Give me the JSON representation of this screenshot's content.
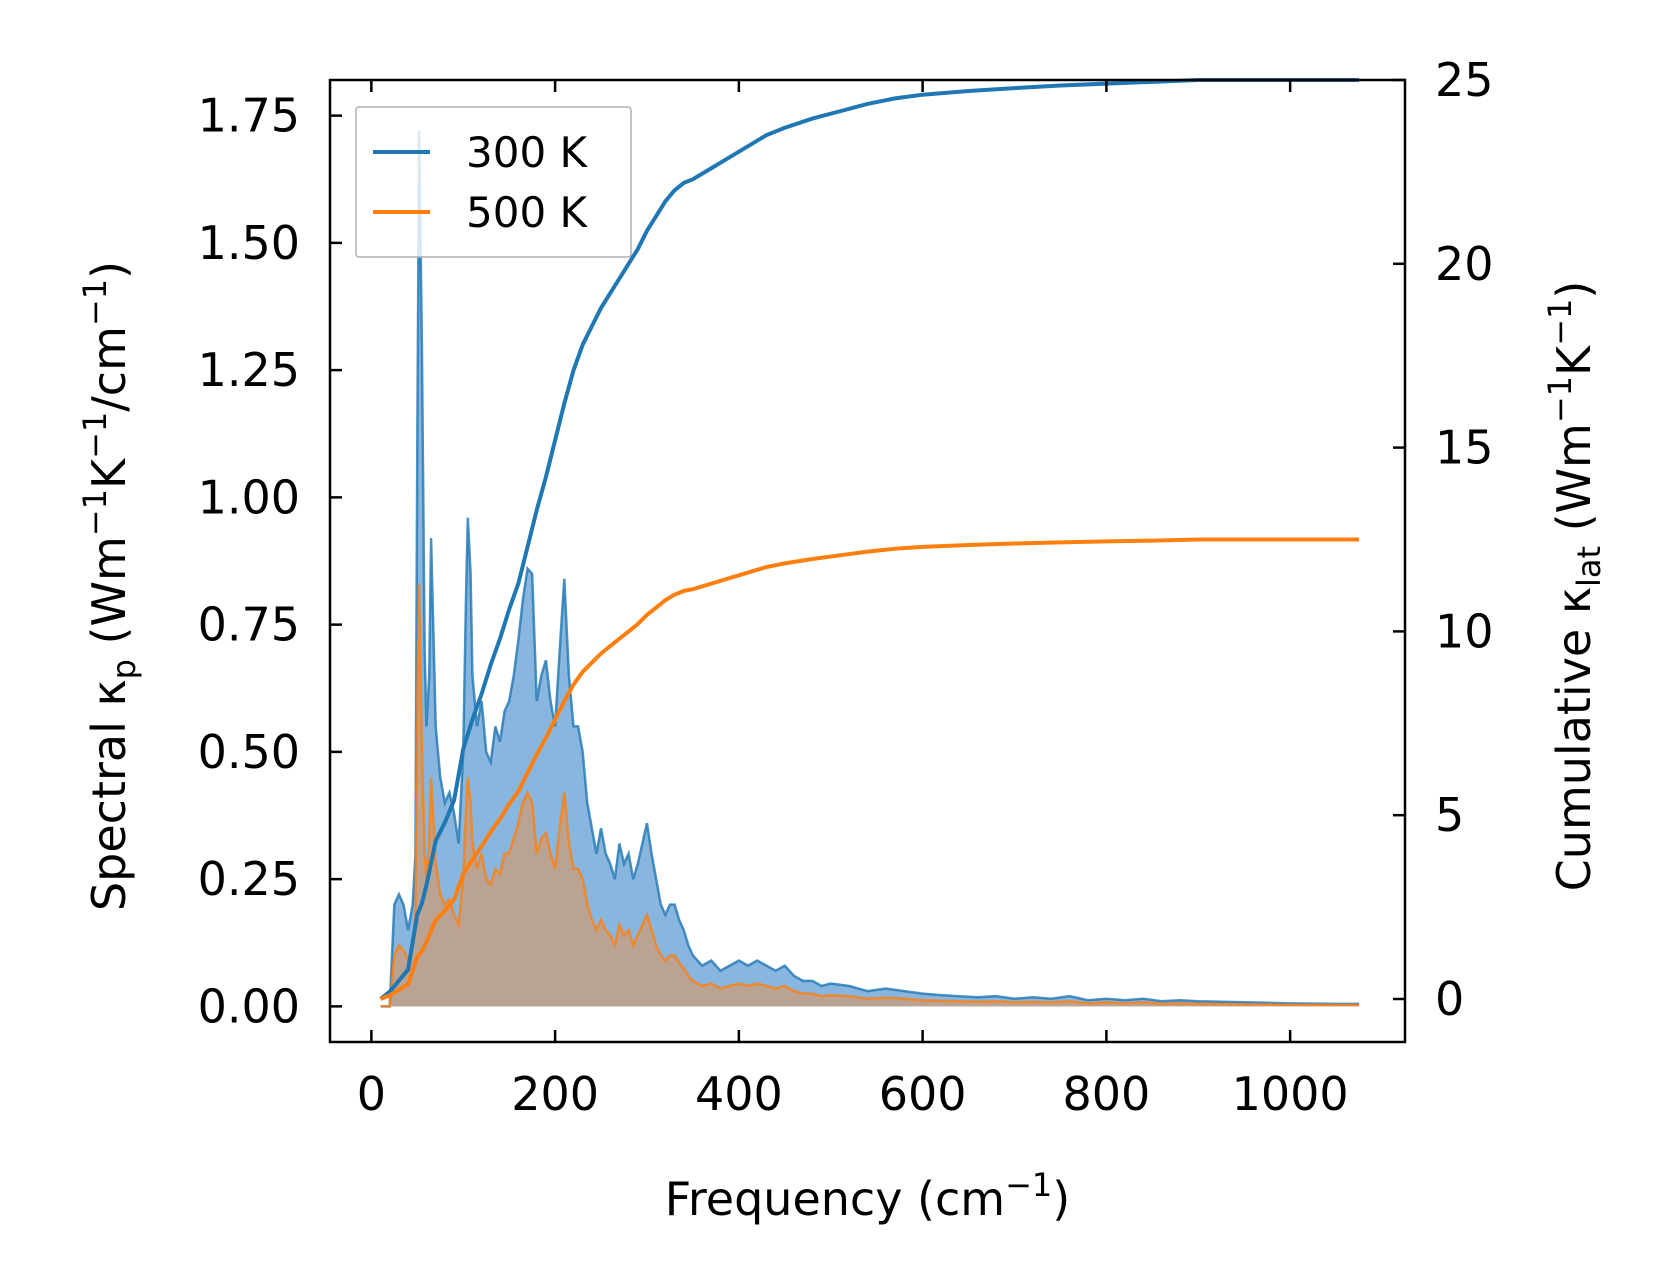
{
  "colors": {
    "series_300": "#1f77b4",
    "series_500": "#ff7f0e",
    "fill_300": "#4a8fcc",
    "fill_500": "#d49a6a"
  },
  "chart_data": {
    "type": "line",
    "title": "",
    "xlabel": "Frequency (cm",
    "xlabel_sup": "−1",
    "xlabel_end": ")",
    "ylabel_left_parts": [
      {
        "t": "Spectral κ",
        "s": "n"
      },
      {
        "t": "p",
        "s": "sub"
      },
      {
        "t": " (Wm",
        "s": "n"
      },
      {
        "t": "−1",
        "s": "sup"
      },
      {
        "t": "K",
        "s": "n"
      },
      {
        "t": "−1",
        "s": "sup"
      },
      {
        "t": "/cm",
        "s": "n"
      },
      {
        "t": "−1",
        "s": "sup"
      },
      {
        "t": ")",
        "s": "n"
      }
    ],
    "ylabel_right_parts": [
      {
        "t": "Cumulative κ",
        "s": "n"
      },
      {
        "t": "lat",
        "s": "sub"
      },
      {
        "t": " (Wm",
        "s": "n"
      },
      {
        "t": "−1",
        "s": "sup"
      },
      {
        "t": "K",
        "s": "n"
      },
      {
        "t": "−1",
        "s": "sup"
      },
      {
        "t": ")",
        "s": "n"
      }
    ],
    "xlim": [
      -45,
      1125
    ],
    "ylim_left": [
      -0.07,
      1.82
    ],
    "ylim_right": [
      -1.17,
      25.0
    ],
    "xticks": [
      0,
      200,
      400,
      600,
      800,
      1000
    ],
    "xtick_labels": [
      "0",
      "200",
      "400",
      "600",
      "800",
      "1000"
    ],
    "yticks_left": [
      0.0,
      0.25,
      0.5,
      0.75,
      1.0,
      1.25,
      1.5,
      1.75
    ],
    "ytick_labels_left": [
      "0.00",
      "0.25",
      "0.50",
      "0.75",
      "1.00",
      "1.25",
      "1.50",
      "1.75"
    ],
    "yticks_right": [
      0,
      5,
      10,
      15,
      20,
      25
    ],
    "ytick_labels_right": [
      "0",
      "5",
      "10",
      "15",
      "20",
      "25"
    ],
    "legend": {
      "position": "upper-left",
      "entries": [
        "300 K",
        "500 K"
      ]
    },
    "spectral_300": {
      "x": [
        10,
        20,
        25,
        30,
        35,
        40,
        45,
        48,
        50,
        52,
        55,
        58,
        60,
        63,
        65,
        68,
        70,
        75,
        80,
        85,
        90,
        95,
        100,
        103,
        105,
        108,
        110,
        115,
        120,
        125,
        130,
        135,
        140,
        145,
        150,
        155,
        160,
        165,
        170,
        175,
        180,
        185,
        190,
        195,
        200,
        205,
        210,
        215,
        220,
        225,
        230,
        235,
        240,
        245,
        250,
        255,
        260,
        265,
        270,
        275,
        280,
        285,
        290,
        295,
        300,
        305,
        310,
        315,
        320,
        325,
        330,
        335,
        340,
        345,
        350,
        360,
        370,
        380,
        390,
        400,
        410,
        420,
        430,
        440,
        450,
        460,
        470,
        480,
        490,
        500,
        520,
        540,
        560,
        580,
        600,
        620,
        640,
        660,
        680,
        700,
        720,
        740,
        760,
        780,
        800,
        820,
        840,
        860,
        880,
        900,
        950,
        1000,
        1050,
        1075
      ],
      "y": [
        0.0,
        0.0,
        0.2,
        0.22,
        0.2,
        0.15,
        0.2,
        0.3,
        1.1,
        1.72,
        1.3,
        0.7,
        0.55,
        0.65,
        0.92,
        0.7,
        0.55,
        0.45,
        0.4,
        0.42,
        0.38,
        0.32,
        0.5,
        0.8,
        0.96,
        0.85,
        0.65,
        0.55,
        0.6,
        0.5,
        0.48,
        0.55,
        0.52,
        0.58,
        0.6,
        0.65,
        0.72,
        0.8,
        0.86,
        0.85,
        0.6,
        0.65,
        0.68,
        0.6,
        0.55,
        0.7,
        0.84,
        0.65,
        0.55,
        0.55,
        0.5,
        0.4,
        0.35,
        0.3,
        0.35,
        0.3,
        0.28,
        0.25,
        0.32,
        0.28,
        0.3,
        0.25,
        0.28,
        0.32,
        0.36,
        0.3,
        0.25,
        0.2,
        0.18,
        0.2,
        0.2,
        0.17,
        0.15,
        0.12,
        0.1,
        0.08,
        0.09,
        0.07,
        0.08,
        0.09,
        0.08,
        0.09,
        0.08,
        0.07,
        0.08,
        0.06,
        0.05,
        0.05,
        0.04,
        0.045,
        0.04,
        0.03,
        0.035,
        0.03,
        0.025,
        0.022,
        0.02,
        0.018,
        0.02,
        0.015,
        0.018,
        0.015,
        0.02,
        0.012,
        0.015,
        0.012,
        0.015,
        0.01,
        0.012,
        0.01,
        0.008,
        0.006,
        0.005,
        0.005
      ]
    },
    "spectral_500": {
      "x": [
        10,
        20,
        25,
        30,
        35,
        40,
        45,
        48,
        50,
        52,
        55,
        58,
        60,
        63,
        65,
        68,
        70,
        75,
        80,
        85,
        90,
        95,
        100,
        103,
        105,
        108,
        110,
        115,
        120,
        125,
        130,
        135,
        140,
        145,
        150,
        155,
        160,
        165,
        170,
        175,
        180,
        185,
        190,
        195,
        200,
        205,
        210,
        215,
        220,
        225,
        230,
        235,
        240,
        245,
        250,
        255,
        260,
        265,
        270,
        275,
        280,
        285,
        290,
        295,
        300,
        305,
        310,
        315,
        320,
        325,
        330,
        335,
        340,
        345,
        350,
        360,
        370,
        380,
        390,
        400,
        410,
        420,
        430,
        440,
        450,
        460,
        470,
        480,
        490,
        500,
        520,
        540,
        560,
        580,
        600,
        620,
        640,
        660,
        680,
        700,
        720,
        740,
        760,
        780,
        800,
        820,
        840,
        860,
        880,
        900,
        950,
        1000,
        1050,
        1075
      ],
      "y": [
        0.0,
        0.0,
        0.1,
        0.12,
        0.11,
        0.09,
        0.12,
        0.18,
        0.6,
        0.83,
        0.5,
        0.3,
        0.25,
        0.32,
        0.45,
        0.35,
        0.28,
        0.22,
        0.2,
        0.21,
        0.18,
        0.16,
        0.25,
        0.38,
        0.45,
        0.4,
        0.32,
        0.27,
        0.3,
        0.25,
        0.24,
        0.27,
        0.26,
        0.3,
        0.3,
        0.33,
        0.36,
        0.4,
        0.42,
        0.4,
        0.3,
        0.33,
        0.34,
        0.3,
        0.27,
        0.35,
        0.42,
        0.32,
        0.27,
        0.27,
        0.25,
        0.2,
        0.17,
        0.15,
        0.17,
        0.15,
        0.14,
        0.12,
        0.16,
        0.14,
        0.15,
        0.12,
        0.14,
        0.16,
        0.18,
        0.15,
        0.12,
        0.1,
        0.09,
        0.1,
        0.1,
        0.085,
        0.075,
        0.06,
        0.05,
        0.04,
        0.045,
        0.035,
        0.04,
        0.045,
        0.04,
        0.045,
        0.04,
        0.035,
        0.04,
        0.03,
        0.025,
        0.025,
        0.02,
        0.022,
        0.02,
        0.015,
        0.017,
        0.015,
        0.012,
        0.011,
        0.01,
        0.009,
        0.01,
        0.008,
        0.009,
        0.008,
        0.01,
        0.006,
        0.008,
        0.006,
        0.008,
        0.005,
        0.006,
        0.005,
        0.004,
        0.003,
        0.003,
        0.003
      ]
    },
    "cumulative_300": {
      "x": [
        10,
        20,
        30,
        40,
        50,
        55,
        60,
        70,
        80,
        90,
        100,
        110,
        120,
        130,
        140,
        150,
        160,
        170,
        180,
        190,
        200,
        210,
        220,
        230,
        240,
        250,
        260,
        270,
        280,
        290,
        300,
        310,
        320,
        330,
        340,
        350,
        370,
        390,
        410,
        430,
        450,
        480,
        510,
        540,
        570,
        600,
        650,
        700,
        750,
        800,
        850,
        900,
        950,
        1000,
        1050,
        1075
      ],
      "y": [
        0.0,
        0.2,
        0.5,
        0.8,
        2.3,
        2.6,
        3.1,
        4.3,
        4.8,
        5.4,
        6.8,
        7.6,
        8.3,
        9.1,
        9.8,
        10.6,
        11.3,
        12.3,
        13.3,
        14.2,
        15.2,
        16.2,
        17.1,
        17.8,
        18.3,
        18.8,
        19.2,
        19.6,
        20.0,
        20.4,
        20.9,
        21.3,
        21.7,
        22.0,
        22.2,
        22.3,
        22.6,
        22.9,
        23.2,
        23.5,
        23.7,
        23.95,
        24.15,
        24.35,
        24.5,
        24.6,
        24.7,
        24.78,
        24.85,
        24.9,
        24.95,
        25.0,
        25.0,
        25.0,
        25.0,
        25.0
      ]
    },
    "cumulative_500": {
      "x": [
        10,
        20,
        30,
        40,
        50,
        55,
        60,
        70,
        80,
        90,
        100,
        110,
        120,
        130,
        140,
        150,
        160,
        170,
        180,
        190,
        200,
        210,
        220,
        230,
        240,
        250,
        260,
        270,
        280,
        290,
        300,
        310,
        320,
        330,
        340,
        350,
        370,
        390,
        410,
        430,
        450,
        480,
        510,
        540,
        570,
        600,
        650,
        700,
        750,
        800,
        850,
        900,
        950,
        1000,
        1050,
        1075
      ],
      "y": [
        0.0,
        0.1,
        0.25,
        0.4,
        1.15,
        1.3,
        1.55,
        2.15,
        2.4,
        2.7,
        3.4,
        3.8,
        4.15,
        4.55,
        4.9,
        5.3,
        5.65,
        6.15,
        6.65,
        7.1,
        7.6,
        8.1,
        8.55,
        8.9,
        9.15,
        9.4,
        9.6,
        9.8,
        10.0,
        10.2,
        10.45,
        10.65,
        10.85,
        11.0,
        11.1,
        11.15,
        11.3,
        11.45,
        11.6,
        11.75,
        11.85,
        11.97,
        12.07,
        12.17,
        12.25,
        12.3,
        12.35,
        12.39,
        12.42,
        12.45,
        12.47,
        12.5,
        12.5,
        12.5,
        12.5,
        12.5
      ]
    }
  }
}
